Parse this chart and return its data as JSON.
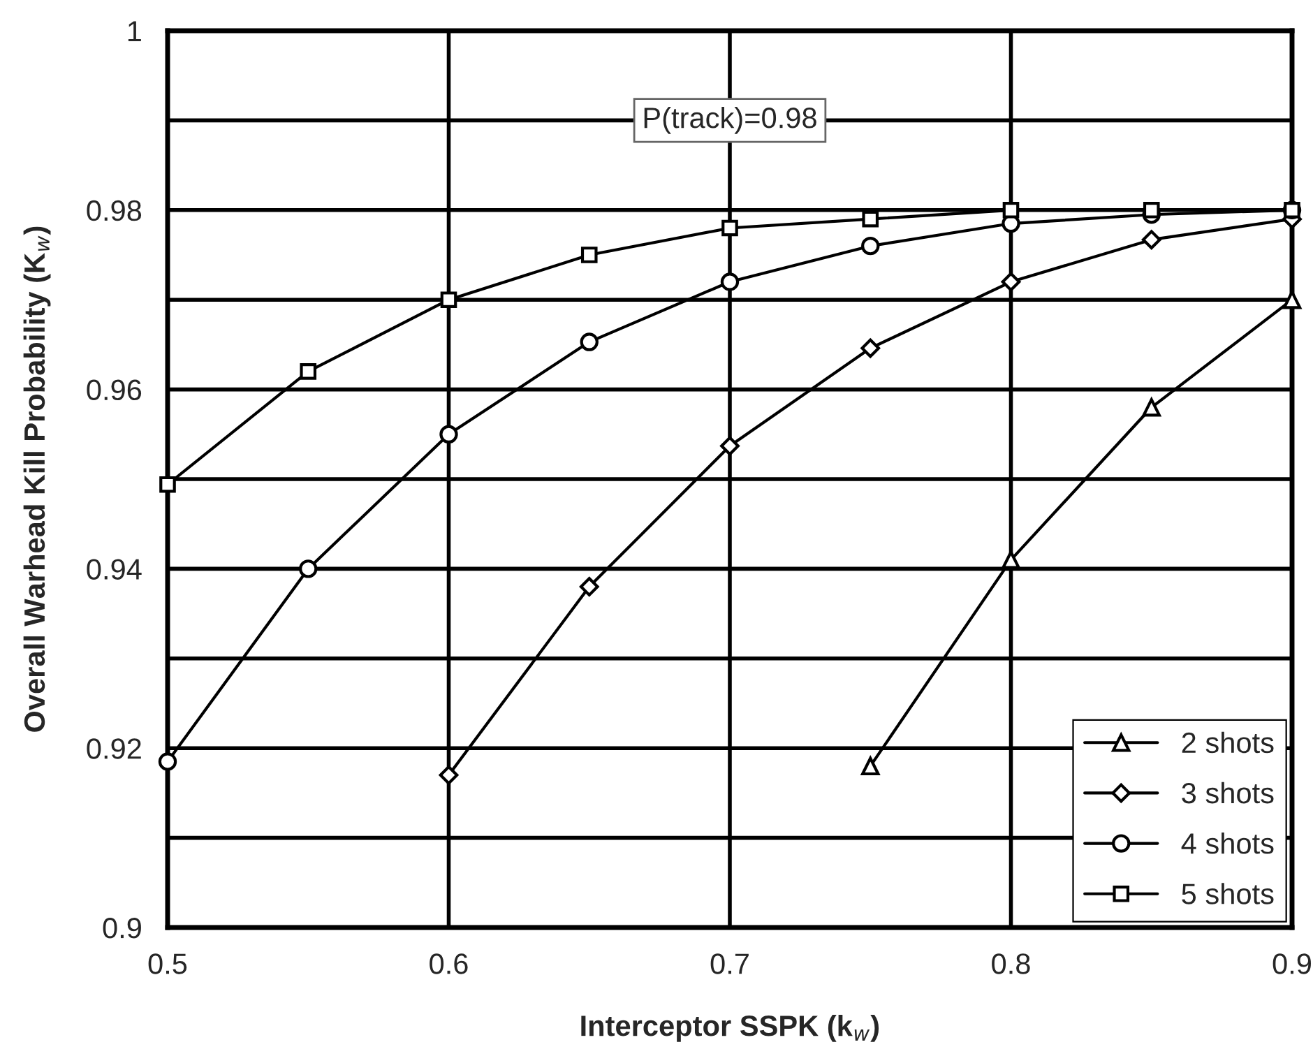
{
  "chart_data": {
    "type": "line",
    "xlabel": "Interceptor SSPK (k$_{w}$)",
    "ylabel": "Overall Warhead Kill Probability (K$_{w}$)",
    "x": [
      0.5,
      0.55,
      0.6,
      0.65,
      0.7,
      0.75,
      0.8,
      0.85,
      0.9
    ],
    "series": [
      {
        "name": "2 shots",
        "color": "#000000",
        "marker": "triangle",
        "values": [
          null,
          null,
          null,
          null,
          null,
          0.918,
          0.941,
          0.958,
          0.97
        ]
      },
      {
        "name": "3 shots",
        "color": "#000000",
        "marker": "diamond",
        "values": [
          null,
          null,
          0.917,
          0.938,
          0.9537,
          0.9646,
          0.972,
          0.9767,
          0.979
        ]
      },
      {
        "name": "4 shots",
        "color": "#000000",
        "marker": "circle",
        "values": [
          0.9185,
          0.94,
          0.955,
          0.9653,
          0.972,
          0.976,
          0.9785,
          0.9795,
          0.98
        ]
      },
      {
        "name": "5 shots",
        "color": "#000000",
        "marker": "square",
        "values": [
          0.9494,
          0.962,
          0.97,
          0.975,
          0.978,
          0.979,
          0.98,
          0.98,
          0.98
        ]
      }
    ],
    "xlim": [
      0.5,
      0.9
    ],
    "xticks": [
      0.5,
      0.6,
      0.7,
      0.8,
      0.9
    ],
    "ylim": [
      0.9,
      1
    ],
    "yticks": [
      0.9,
      {
        "value": 0.91,
        "label": null
      },
      0.92,
      {
        "value": 0.93,
        "label": null
      },
      0.94,
      {
        "value": 0.95,
        "label": null
      },
      0.96,
      {
        "value": 0.97,
        "label": null
      },
      0.98,
      {
        "value": 0.99,
        "label": null
      },
      1
    ],
    "annotations": [
      "P(track)=0.98"
    ],
    "grid": true,
    "legend": "bottom right",
    "line_style": "solid"
  }
}
